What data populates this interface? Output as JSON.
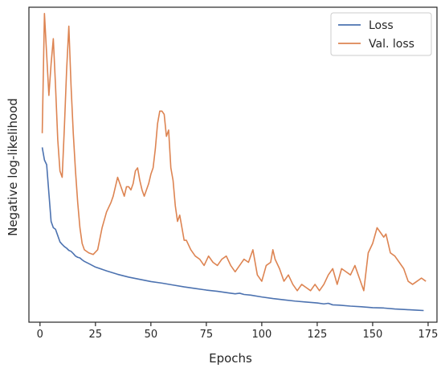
{
  "chart_data": {
    "type": "line",
    "xlabel": "Epochs",
    "ylabel": "Negative log-likelihood",
    "xlim": [
      -5,
      179
    ],
    "ylim": [
      0,
      1
    ],
    "y_tick_labels_shown": false,
    "x_ticks": [
      0,
      25,
      50,
      75,
      100,
      125,
      150,
      175
    ],
    "x_tick_labels": [
      "0",
      "25",
      "50",
      "75",
      "100",
      "125",
      "150",
      "175"
    ],
    "legend_position": "top-right",
    "grid": false,
    "series": [
      {
        "name": "Loss",
        "color": "#4c72b0",
        "x": [
          1,
          2,
          3,
          4,
          5,
          6,
          7,
          8,
          9,
          10,
          11,
          12,
          13,
          14,
          15,
          16,
          17,
          18,
          19,
          20,
          22,
          25,
          30,
          35,
          40,
          45,
          50,
          55,
          60,
          65,
          70,
          75,
          80,
          85,
          88,
          90,
          92,
          95,
          100,
          105,
          110,
          115,
          120,
          125,
          128,
          130,
          132,
          135,
          140,
          145,
          150,
          155,
          160,
          165,
          170,
          173
        ],
        "values": [
          0.555,
          0.515,
          0.5,
          0.41,
          0.32,
          0.3,
          0.295,
          0.275,
          0.255,
          0.247,
          0.24,
          0.235,
          0.228,
          0.225,
          0.218,
          0.21,
          0.206,
          0.204,
          0.198,
          0.193,
          0.186,
          0.175,
          0.163,
          0.152,
          0.143,
          0.136,
          0.129,
          0.124,
          0.118,
          0.112,
          0.107,
          0.102,
          0.098,
          0.093,
          0.09,
          0.092,
          0.088,
          0.086,
          0.08,
          0.075,
          0.071,
          0.067,
          0.064,
          0.061,
          0.058,
          0.06,
          0.055,
          0.054,
          0.051,
          0.049,
          0.046,
          0.045,
          0.042,
          0.04,
          0.038,
          0.037
        ]
      },
      {
        "name": "Val. loss",
        "color": "#dd8452",
        "x": [
          1,
          2,
          3,
          4,
          5,
          6,
          7,
          8,
          9,
          10,
          11,
          12,
          13,
          14,
          15,
          16,
          17,
          18,
          19,
          20,
          22,
          24,
          26,
          28,
          30,
          32,
          33,
          34,
          35,
          36,
          37,
          38,
          39,
          40,
          41,
          42,
          43,
          44,
          45,
          46,
          47,
          48,
          49,
          50,
          51,
          52,
          53,
          54,
          55,
          56,
          57,
          58,
          59,
          60,
          61,
          62,
          63,
          64,
          65,
          66,
          68,
          70,
          72,
          74,
          76,
          78,
          80,
          82,
          84,
          86,
          88,
          90,
          92,
          94,
          96,
          98,
          100,
          102,
          104,
          105,
          106,
          108,
          110,
          112,
          114,
          116,
          118,
          120,
          122,
          124,
          126,
          128,
          130,
          132,
          134,
          136,
          138,
          140,
          142,
          144,
          146,
          148,
          150,
          152,
          154,
          155,
          156,
          158,
          160,
          162,
          164,
          166,
          168,
          170,
          172,
          174
        ],
        "values": [
          0.6,
          0.98,
          0.85,
          0.72,
          0.82,
          0.9,
          0.75,
          0.58,
          0.48,
          0.46,
          0.62,
          0.8,
          0.94,
          0.75,
          0.6,
          0.48,
          0.38,
          0.3,
          0.25,
          0.23,
          0.22,
          0.215,
          0.23,
          0.3,
          0.35,
          0.38,
          0.4,
          0.43,
          0.46,
          0.44,
          0.42,
          0.4,
          0.43,
          0.43,
          0.42,
          0.44,
          0.48,
          0.49,
          0.45,
          0.42,
          0.4,
          0.42,
          0.44,
          0.47,
          0.49,
          0.55,
          0.63,
          0.67,
          0.67,
          0.66,
          0.59,
          0.61,
          0.49,
          0.45,
          0.37,
          0.32,
          0.34,
          0.3,
          0.26,
          0.26,
          0.23,
          0.21,
          0.2,
          0.18,
          0.21,
          0.19,
          0.18,
          0.2,
          0.21,
          0.18,
          0.16,
          0.18,
          0.2,
          0.19,
          0.23,
          0.15,
          0.13,
          0.18,
          0.19,
          0.23,
          0.2,
          0.17,
          0.13,
          0.15,
          0.12,
          0.1,
          0.12,
          0.11,
          0.1,
          0.12,
          0.1,
          0.12,
          0.15,
          0.17,
          0.12,
          0.17,
          0.16,
          0.15,
          0.18,
          0.14,
          0.1,
          0.22,
          0.25,
          0.3,
          0.28,
          0.27,
          0.28,
          0.22,
          0.21,
          0.19,
          0.17,
          0.13,
          0.12,
          0.13,
          0.14,
          0.13
        ]
      }
    ]
  }
}
